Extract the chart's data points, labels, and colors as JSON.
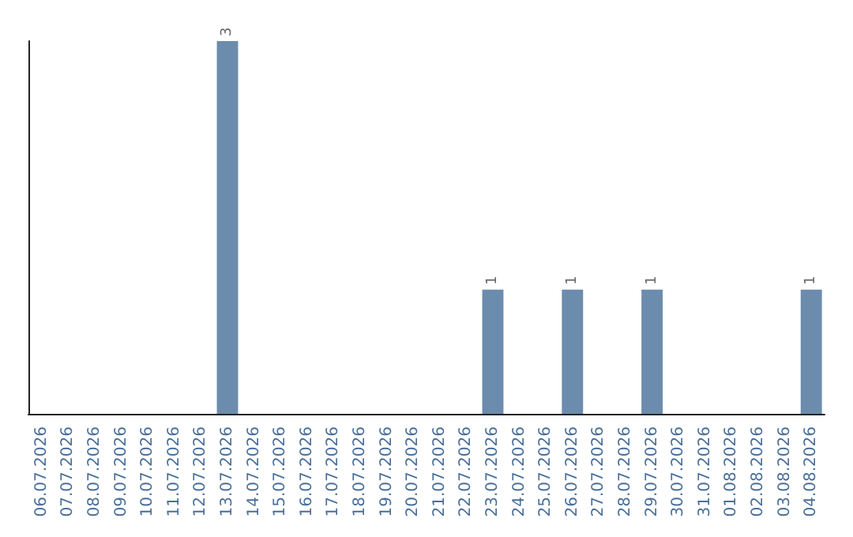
{
  "chart_data": {
    "type": "bar",
    "categories": [
      "06.07.2026",
      "07.07.2026",
      "08.07.2026",
      "09.07.2026",
      "10.07.2026",
      "11.07.2026",
      "12.07.2026",
      "13.07.2026",
      "14.07.2026",
      "15.07.2026",
      "16.07.2026",
      "17.07.2026",
      "18.07.2026",
      "19.07.2026",
      "20.07.2026",
      "21.07.2026",
      "22.07.2026",
      "23.07.2026",
      "24.07.2026",
      "25.07.2026",
      "26.07.2026",
      "27.07.2026",
      "28.07.2026",
      "29.07.2026",
      "30.07.2026",
      "31.07.2026",
      "01.08.2026",
      "02.08.2026",
      "03.08.2026",
      "04.08.2026"
    ],
    "values": [
      0,
      0,
      0,
      0,
      0,
      0,
      0,
      3,
      0,
      0,
      0,
      0,
      0,
      0,
      0,
      0,
      0,
      1,
      0,
      0,
      1,
      0,
      0,
      1,
      0,
      0,
      0,
      0,
      0,
      1
    ],
    "value_labels": [
      null,
      null,
      null,
      null,
      null,
      null,
      null,
      "3",
      null,
      null,
      null,
      null,
      null,
      null,
      null,
      null,
      null,
      "1",
      null,
      null,
      "1",
      null,
      null,
      "1",
      null,
      null,
      null,
      null,
      null,
      "1"
    ],
    "color": "#6b8cad",
    "tick_labels": "x"
  }
}
